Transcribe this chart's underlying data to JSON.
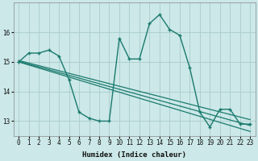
{
  "xlabel": "Humidex (Indice chaleur)",
  "bg_color": "#cce8e8",
  "grid_color": "#aacccc",
  "line_color": "#1a7a6e",
  "xlim": [
    -0.5,
    23.5
  ],
  "ylim": [
    12.5,
    17.0
  ],
  "yticks": [
    13,
    14,
    15,
    16
  ],
  "xticks": [
    0,
    1,
    2,
    3,
    4,
    5,
    6,
    7,
    8,
    9,
    10,
    11,
    12,
    13,
    14,
    15,
    16,
    17,
    18,
    19,
    20,
    21,
    22,
    23
  ],
  "series": [
    {
      "x": [
        0,
        1,
        2,
        3,
        4,
        5,
        6,
        7,
        8,
        9,
        10,
        11,
        12,
        13,
        14,
        15,
        16,
        17,
        18,
        19,
        20,
        21,
        22,
        23
      ],
      "y": [
        15.0,
        15.3,
        15.3,
        15.4,
        15.2,
        14.4,
        13.3,
        13.1,
        13.0,
        13.0,
        15.8,
        15.1,
        15.1,
        16.3,
        16.6,
        16.1,
        15.9,
        14.8,
        13.3,
        12.8,
        13.4,
        13.4,
        12.9,
        12.9
      ],
      "marker": "+",
      "markersize": 3.5,
      "linewidth": 1.0
    },
    {
      "x": [
        0,
        23
      ],
      "y": [
        15.05,
        13.05
      ],
      "marker": null,
      "markersize": 0,
      "linewidth": 0.9
    },
    {
      "x": [
        0,
        23
      ],
      "y": [
        15.02,
        12.85
      ],
      "marker": null,
      "markersize": 0,
      "linewidth": 0.9
    },
    {
      "x": [
        0,
        23
      ],
      "y": [
        15.0,
        12.65
      ],
      "marker": null,
      "markersize": 0,
      "linewidth": 0.9
    }
  ]
}
